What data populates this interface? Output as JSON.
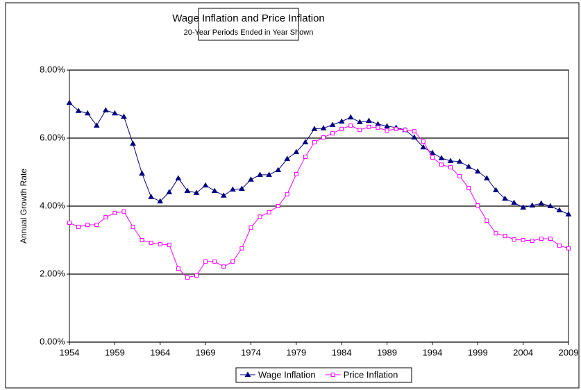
{
  "chart_data": {
    "type": "line",
    "title": "Wage Inflation and Price Inflation",
    "subtitle": "20-Year Periods Ended in Year Shown",
    "y_label": "Annual Growth Rate",
    "x": [
      1954,
      1955,
      1956,
      1957,
      1958,
      1959,
      1960,
      1961,
      1962,
      1963,
      1964,
      1965,
      1966,
      1967,
      1968,
      1969,
      1970,
      1971,
      1972,
      1973,
      1974,
      1975,
      1976,
      1977,
      1978,
      1979,
      1980,
      1981,
      1982,
      1983,
      1984,
      1985,
      1986,
      1987,
      1988,
      1989,
      1990,
      1991,
      1992,
      1993,
      1994,
      1995,
      1996,
      1997,
      1998,
      1999,
      2000,
      2001,
      2002,
      2003,
      2004,
      2005,
      2006,
      2007,
      2008,
      2009
    ],
    "series": [
      {
        "name": "Wage Inflation",
        "color": "#000080",
        "marker": "triangle",
        "values": [
          7.04,
          6.8,
          6.73,
          6.37,
          6.82,
          6.73,
          6.63,
          5.84,
          4.96,
          4.27,
          4.14,
          4.41,
          4.82,
          4.45,
          4.39,
          4.61,
          4.45,
          4.31,
          4.49,
          4.51,
          4.78,
          4.92,
          4.92,
          5.06,
          5.39,
          5.59,
          5.88,
          6.27,
          6.29,
          6.39,
          6.49,
          6.61,
          6.47,
          6.51,
          6.41,
          6.35,
          6.31,
          6.24,
          6.02,
          5.73,
          5.57,
          5.41,
          5.33,
          5.31,
          5.16,
          5.02,
          4.82,
          4.47,
          4.22,
          4.1,
          3.96,
          4.02,
          4.08,
          4.0,
          3.88,
          3.76
        ]
      },
      {
        "name": "Price Inflation",
        "color": "#ff00ff",
        "marker": "square",
        "values": [
          3.51,
          3.39,
          3.45,
          3.45,
          3.67,
          3.8,
          3.84,
          3.39,
          3.0,
          2.92,
          2.88,
          2.86,
          2.16,
          1.9,
          1.96,
          2.37,
          2.37,
          2.22,
          2.37,
          2.76,
          3.37,
          3.69,
          3.82,
          4.0,
          4.35,
          4.94,
          5.45,
          5.88,
          6.02,
          6.14,
          6.27,
          6.37,
          6.24,
          6.33,
          6.31,
          6.22,
          6.27,
          6.24,
          6.2,
          5.9,
          5.43,
          5.22,
          5.14,
          4.88,
          4.53,
          4.02,
          3.57,
          3.2,
          3.12,
          3.02,
          3.0,
          2.98,
          3.04,
          3.04,
          2.84,
          2.76
        ]
      }
    ],
    "xlim": [
      1954,
      2009
    ],
    "xticks": [
      1954,
      1959,
      1964,
      1969,
      1974,
      1979,
      1984,
      1989,
      1994,
      1999,
      2004,
      2009
    ],
    "ylim": [
      0,
      8
    ],
    "yticks": [
      {
        "value": 0,
        "label": "0.00%"
      },
      {
        "value": 2,
        "label": "2.00%"
      },
      {
        "value": 4,
        "label": "4.00%"
      },
      {
        "value": 6,
        "label": "6.00%"
      },
      {
        "value": 8,
        "label": "8.00%"
      }
    ],
    "grid": true,
    "legend": "bottom"
  }
}
